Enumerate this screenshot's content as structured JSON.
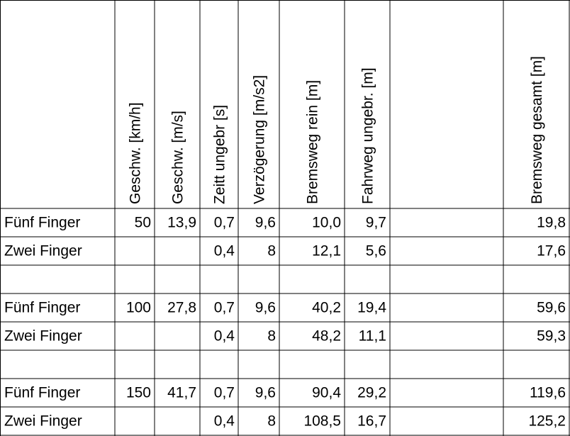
{
  "table": {
    "headers": {
      "kmh": "Geschw. [km/h]",
      "ms": "Geschw. [m/s]",
      "zeit": "Zeitt ungebr [s]",
      "verz": "Verzögerung [m/s2]",
      "rein": "Bremsweg rein [m]",
      "fahr": "Fahrweg ungebr. [m]",
      "gesamt": "Bremsweg gesamt [m]"
    },
    "rows": [
      {
        "label": "Fünf Finger",
        "kmh": "50",
        "ms": "13,9",
        "zeit": "0,7",
        "verz": "9,6",
        "rein": "10,0",
        "fahr": "9,7",
        "gesamt": "19,8"
      },
      {
        "label": "Zwei Finger",
        "zeit": "0,4",
        "verz": "8",
        "rein": "12,1",
        "fahr": "5,6",
        "gesamt": "17,6"
      },
      {
        "label": "Fünf Finger",
        "kmh": "100",
        "ms": "27,8",
        "zeit": "0,7",
        "verz": "9,6",
        "rein": "40,2",
        "fahr": "19,4",
        "gesamt": "59,6"
      },
      {
        "label": "Zwei Finger",
        "zeit": "0,4",
        "verz": "8",
        "rein": "48,2",
        "fahr": "11,1",
        "gesamt": "59,3"
      },
      {
        "label": "Fünf Finger",
        "kmh": "150",
        "ms": "41,7",
        "zeit": "0,7",
        "verz": "9,6",
        "rein": "90,4",
        "fahr": "29,2",
        "gesamt": "119,6"
      },
      {
        "label": "Zwei Finger",
        "zeit": "0,4",
        "verz": "8",
        "rein": "108,5",
        "fahr": "16,7",
        "gesamt": "125,2"
      }
    ]
  }
}
